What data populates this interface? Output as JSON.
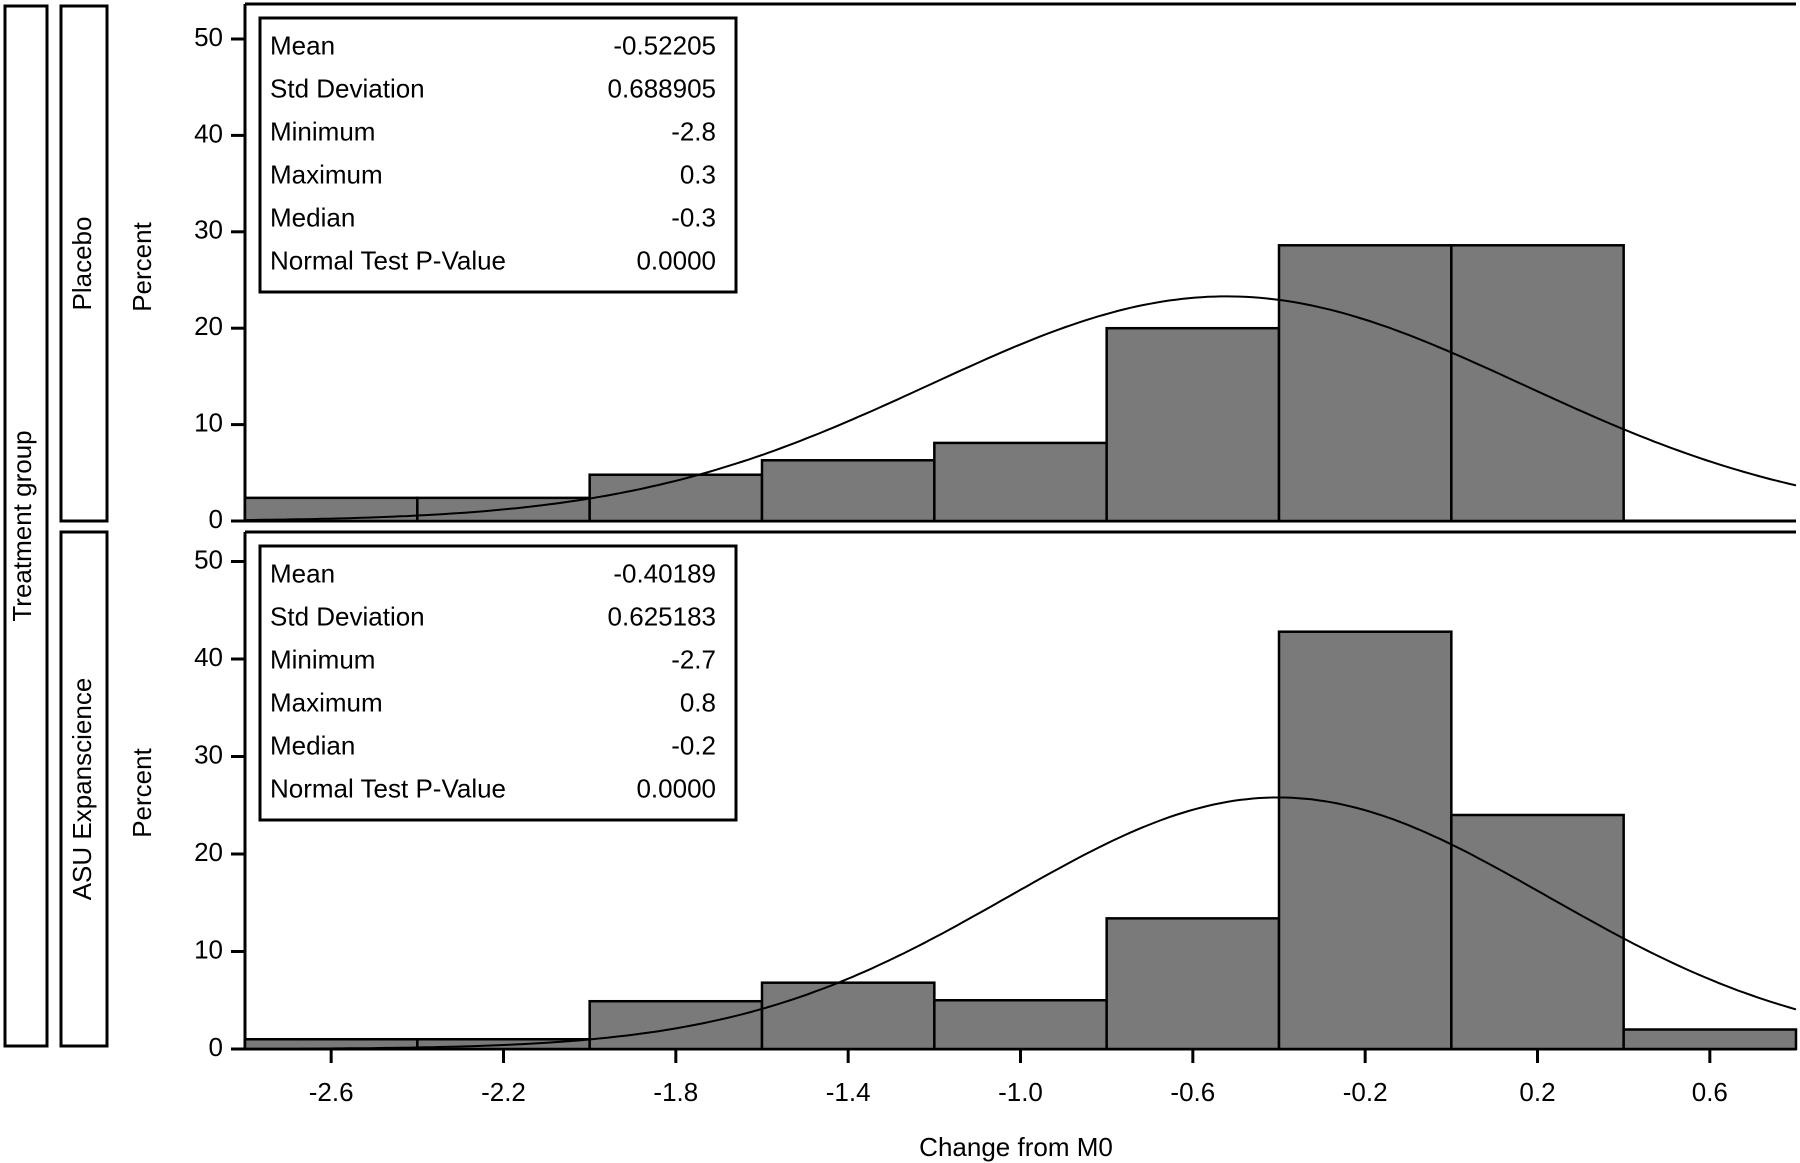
{
  "chart_data": {
    "type": "bar",
    "subtype": "histogram with fitted normal curve",
    "outer_label": "Treatment group",
    "xlabel": "Change from M0",
    "ylabel": "Percent",
    "xlim": [
      -2.8,
      0.8
    ],
    "ylim": [
      0,
      53
    ],
    "bin_width": 0.4,
    "x_ticks": [
      -2.6,
      -2.2,
      -1.8,
      -1.4,
      -1.0,
      -0.6,
      -0.2,
      0.2,
      0.6
    ],
    "x_tick_labels": [
      "-2.6",
      "-2.2",
      "-1.8",
      "-1.4",
      "-1.0",
      "-0.6",
      "-0.2",
      "0.2",
      "0.6"
    ],
    "y_ticks": [
      0,
      10,
      20,
      30,
      40,
      50
    ],
    "y_tick_labels": [
      "0",
      "10",
      "20",
      "30",
      "40",
      "50"
    ],
    "bar_color": "#7a7a7a",
    "panels": [
      {
        "group": "Placebo",
        "bin_starts": [
          -2.8,
          -2.4,
          -2.0,
          -1.6,
          -1.2,
          -0.8,
          -0.4,
          0.0
        ],
        "values": [
          2.4,
          2.4,
          4.8,
          6.3,
          8.1,
          20.0,
          28.6,
          28.6
        ],
        "normal_curve": {
          "mean": -0.52205,
          "sd": 0.688905,
          "peak_percent": 23.3
        },
        "stats": [
          {
            "label": "Mean",
            "value": "-0.52205"
          },
          {
            "label": "Std Deviation",
            "value": "0.688905"
          },
          {
            "label": "Minimum",
            "value": "-2.8"
          },
          {
            "label": "Maximum",
            "value": "0.3"
          },
          {
            "label": "Median",
            "value": "-0.3"
          },
          {
            "label": "Normal Test P-Value",
            "value": "0.0000"
          }
        ]
      },
      {
        "group": "ASU Expanscience",
        "bin_starts": [
          -2.8,
          -2.4,
          -2.0,
          -1.6,
          -1.2,
          -0.8,
          -0.4,
          0.0,
          0.4
        ],
        "values": [
          1.0,
          1.0,
          4.9,
          6.8,
          5.0,
          13.4,
          42.8,
          24.0,
          2.0
        ],
        "normal_curve": {
          "mean": -0.40189,
          "sd": 0.625183,
          "peak_percent": 25.8
        },
        "stats": [
          {
            "label": "Mean",
            "value": "-0.40189"
          },
          {
            "label": "Std Deviation",
            "value": "0.625183"
          },
          {
            "label": "Minimum",
            "value": "-2.7"
          },
          {
            "label": "Maximum",
            "value": "0.8"
          },
          {
            "label": "Median",
            "value": "-0.2"
          },
          {
            "label": "Normal Test P-Value",
            "value": "0.0000"
          }
        ]
      }
    ]
  }
}
